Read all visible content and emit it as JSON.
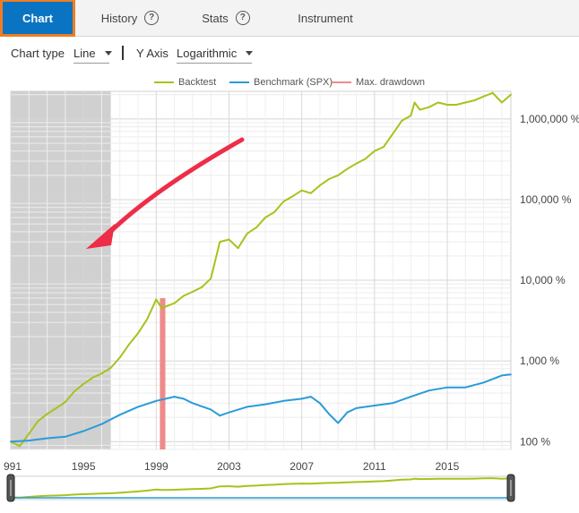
{
  "tabs": [
    {
      "label": "Chart",
      "active": true
    },
    {
      "label": "History",
      "help_icon": "question-circle-icon"
    },
    {
      "label": "Stats",
      "help_icon": "question-circle-icon"
    },
    {
      "label": "Instrument"
    }
  ],
  "help_glyph": "?",
  "toolbar": {
    "chart_type_label": "Chart type",
    "chart_type_value": "Line",
    "y_axis_label": "Y Axis",
    "y_axis_value": "Logarithmic"
  },
  "colors": {
    "accent": "#0a74c2",
    "focus_border": "#f07d22",
    "backtest": "#a8c21c",
    "benchmark": "#2a9bd8",
    "drawdown": "#ef8a8a",
    "shade": "#d0d0d0",
    "arrow": "#ee2d48"
  },
  "chart_data": {
    "type": "line",
    "y_scale": "log",
    "ylim": [
      80,
      2200000
    ],
    "xlim": [
      1991,
      2018.5
    ],
    "x_ticks": [
      "991",
      "1995",
      "1999",
      "2003",
      "2007",
      "2011",
      "2015"
    ],
    "y_ticks": [
      {
        "value": 100,
        "label": "100 %"
      },
      {
        "value": 1000,
        "label": "1,000 %"
      },
      {
        "value": 10000,
        "label": "10,000 %"
      },
      {
        "value": 100000,
        "label": "100,000 %"
      },
      {
        "value": 1000000,
        "label": "1,000,000 %"
      }
    ],
    "grid": true,
    "legend_position": "top",
    "series": [
      {
        "name": "Backtest",
        "x": [
          1991.0,
          1991.5,
          1992.0,
          1992.5,
          1993.0,
          1993.5,
          1994.0,
          1994.5,
          1995.0,
          1995.5,
          1996.0,
          1996.5,
          1997.0,
          1997.5,
          1998.0,
          1998.5,
          1999.0,
          1999.3,
          1999.6,
          2000.0,
          2000.5,
          2001.0,
          2001.5,
          2002.0,
          2002.5,
          2003.0,
          2003.5,
          2004.0,
          2004.5,
          2005.0,
          2005.5,
          2006.0,
          2006.5,
          2007.0,
          2007.5,
          2008.0,
          2008.5,
          2009.0,
          2009.5,
          2010.0,
          2010.5,
          2011.0,
          2011.5,
          2012.0,
          2012.5,
          2013.0,
          2013.2,
          2013.5,
          2014.0,
          2014.5,
          2015.0,
          2015.5,
          2016.0,
          2016.5,
          2017.0,
          2017.5,
          2018.0,
          2018.5
        ],
        "y": [
          100,
          88,
          125,
          180,
          220,
          260,
          310,
          420,
          520,
          620,
          700,
          820,
          1100,
          1600,
          2200,
          3300,
          5800,
          4500,
          4800,
          5200,
          6400,
          7200,
          8200,
          10500,
          30000,
          32000,
          25000,
          38000,
          45000,
          60000,
          70000,
          95000,
          110000,
          130000,
          120000,
          150000,
          180000,
          200000,
          240000,
          280000,
          320000,
          400000,
          450000,
          650000,
          950000,
          1100000,
          1600000,
          1300000,
          1400000,
          1600000,
          1500000,
          1500000,
          1600000,
          1700000,
          1900000,
          2100000,
          1600000,
          2000000
        ]
      },
      {
        "name": "Benchmark (SPX)",
        "x": [
          1991.0,
          1992.0,
          1993.0,
          1994.0,
          1995.0,
          1996.0,
          1997.0,
          1998.0,
          1999.0,
          2000.0,
          2000.5,
          2001.0,
          2002.0,
          2002.5,
          2003.0,
          2004.0,
          2005.0,
          2006.0,
          2007.0,
          2007.5,
          2008.0,
          2008.5,
          2009.0,
          2009.5,
          2010.0,
          2011.0,
          2012.0,
          2013.0,
          2014.0,
          2015.0,
          2016.0,
          2017.0,
          2018.0,
          2018.5
        ],
        "y": [
          100,
          103,
          110,
          115,
          135,
          165,
          215,
          270,
          320,
          360,
          340,
          300,
          250,
          210,
          230,
          270,
          290,
          320,
          340,
          360,
          300,
          220,
          170,
          230,
          260,
          280,
          300,
          360,
          430,
          470,
          470,
          540,
          660,
          680
        ]
      }
    ],
    "drawdown_band": {
      "name": "Max. drawdown",
      "x_start": 1999.2,
      "x_end": 1999.5
    },
    "navigator": {
      "type": "range-selector"
    }
  }
}
